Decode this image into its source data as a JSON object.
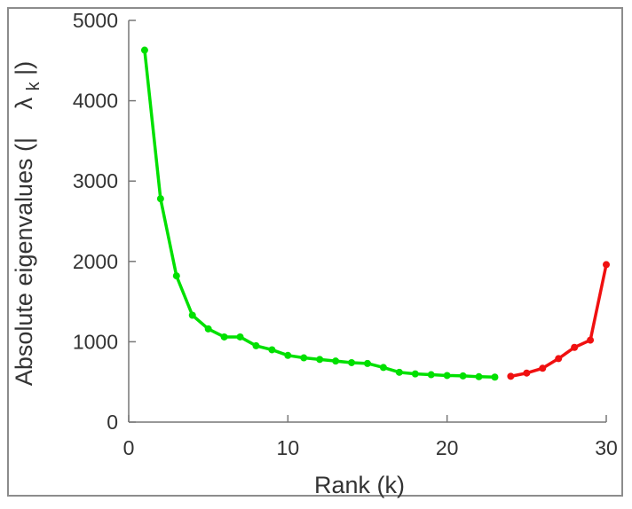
{
  "chart_data": {
    "type": "line",
    "xlabel": "Rank (k)",
    "ylabel": {
      "prefix": "Absolute eigenvalues (|",
      "symbol": "λ",
      "subscript": "k",
      "suffix": "|)"
    },
    "xlim": [
      0,
      30
    ],
    "ylim": [
      0,
      5000
    ],
    "x_ticks": [
      "0",
      "10",
      "20",
      "30"
    ],
    "y_ticks": [
      "0",
      "1000",
      "2000",
      "3000",
      "4000",
      "5000"
    ],
    "grid": false,
    "series": [
      {
        "color": "#00e000",
        "x": [
          1,
          2,
          3,
          4,
          5,
          6,
          7,
          8,
          9,
          10,
          11,
          12,
          13,
          14,
          15,
          16,
          17,
          18,
          19,
          20,
          21,
          22,
          23
        ],
        "values": [
          4630,
          2780,
          1820,
          1330,
          1160,
          1060,
          1060,
          950,
          900,
          830,
          800,
          780,
          760,
          740,
          730,
          680,
          620,
          600,
          590,
          580,
          575,
          565,
          560
        ]
      },
      {
        "color": "#f01010",
        "x": [
          24,
          25,
          26,
          27,
          28,
          29,
          30
        ],
        "values": [
          570,
          610,
          670,
          790,
          930,
          1020,
          1960
        ]
      }
    ]
  }
}
